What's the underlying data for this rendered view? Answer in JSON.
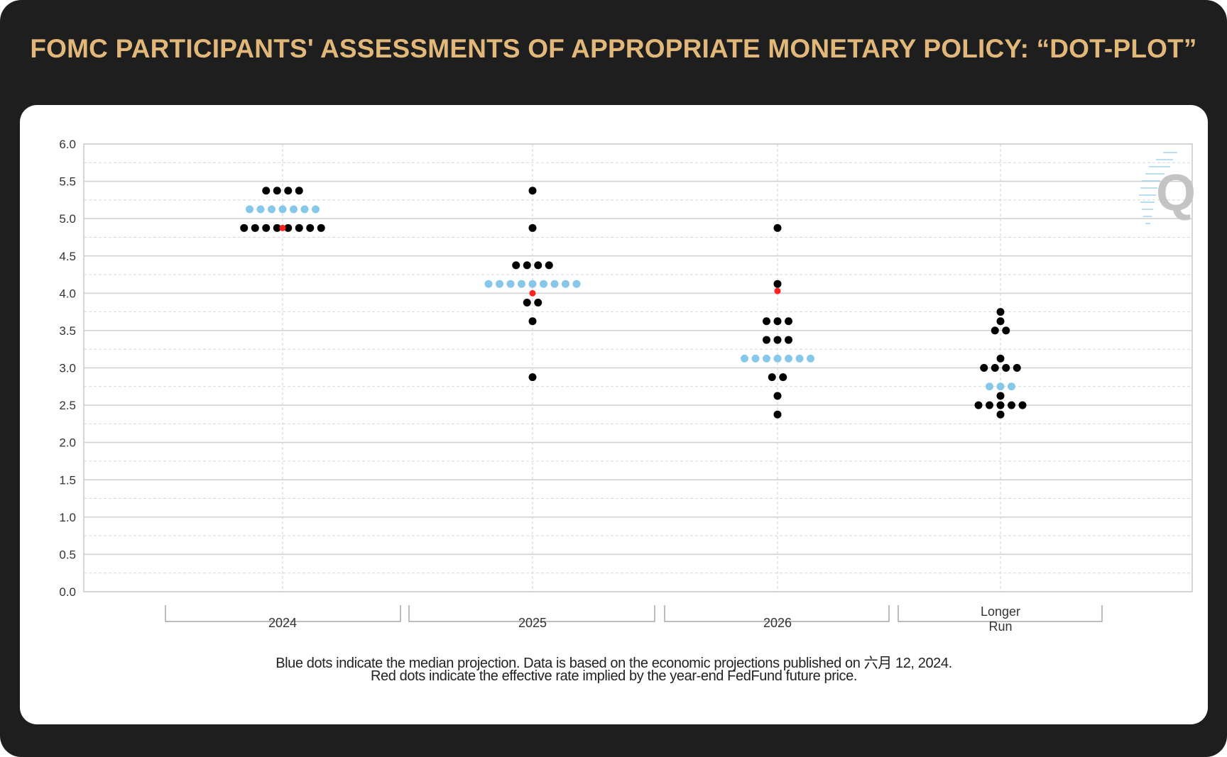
{
  "title": "FOMC PARTICIPANTS' ASSESSMENTS OF APPROPRIATE MONETARY POLICY: “DOT-PLOT”",
  "notes": [
    "Blue dots indicate the median projection. Data is based on the economic projections published on 六月 12, 2024.",
    "Red dots indicate the effective rate implied by the year-end FedFund future price."
  ],
  "colors": {
    "frame": "#1e1e1e",
    "title": "#e2b77a",
    "participant_dot": "#000000",
    "median_dot": "#87c8ea",
    "effective_rate_dot": "#ff2020",
    "watermark": "#c8c8c8"
  },
  "watermark_icon": "q-logo-icon",
  "chart_data": {
    "type": "scatter",
    "title": "",
    "xlabel": "",
    "ylabel": "",
    "ylim": [
      0,
      6
    ],
    "y_ticks": [
      "0.0",
      "0.5",
      "1.0",
      "1.5",
      "2.0",
      "2.5",
      "3.0",
      "3.5",
      "4.0",
      "4.5",
      "5.0",
      "5.5",
      "6.0"
    ],
    "categories": [
      "2024",
      "2025",
      "2026",
      "Longer Run"
    ],
    "category_labels": [
      [
        "2024"
      ],
      [
        "2025"
      ],
      [
        "2026"
      ],
      [
        "Longer",
        "Run"
      ]
    ],
    "grid": true,
    "series": [
      {
        "role": "participants",
        "points": [
          {
            "category": "2024",
            "y": 5.375,
            "count": 4
          },
          {
            "category": "2024",
            "y": 4.875,
            "count": 8
          },
          {
            "category": "2025",
            "y": 5.375,
            "count": 1
          },
          {
            "category": "2025",
            "y": 4.875,
            "count": 1
          },
          {
            "category": "2025",
            "y": 4.375,
            "count": 4
          },
          {
            "category": "2025",
            "y": 3.875,
            "count": 2
          },
          {
            "category": "2025",
            "y": 3.625,
            "count": 1
          },
          {
            "category": "2025",
            "y": 2.875,
            "count": 1
          },
          {
            "category": "2026",
            "y": 4.875,
            "count": 1
          },
          {
            "category": "2026",
            "y": 4.125,
            "count": 1
          },
          {
            "category": "2026",
            "y": 3.625,
            "count": 3
          },
          {
            "category": "2026",
            "y": 3.375,
            "count": 3
          },
          {
            "category": "2026",
            "y": 2.875,
            "count": 2
          },
          {
            "category": "2026",
            "y": 2.625,
            "count": 1
          },
          {
            "category": "2026",
            "y": 2.375,
            "count": 1
          },
          {
            "category": "Longer Run",
            "y": 3.75,
            "count": 1
          },
          {
            "category": "Longer Run",
            "y": 3.625,
            "count": 1
          },
          {
            "category": "Longer Run",
            "y": 3.5,
            "count": 2
          },
          {
            "category": "Longer Run",
            "y": 3.125,
            "count": 1
          },
          {
            "category": "Longer Run",
            "y": 3.0,
            "count": 4
          },
          {
            "category": "Longer Run",
            "y": 2.625,
            "count": 1
          },
          {
            "category": "Longer Run",
            "y": 2.5,
            "count": 5
          },
          {
            "category": "Longer Run",
            "y": 2.375,
            "count": 1
          }
        ]
      },
      {
        "role": "median",
        "points": [
          {
            "category": "2024",
            "y": 5.125,
            "count": 7
          },
          {
            "category": "2025",
            "y": 4.125,
            "count": 9
          },
          {
            "category": "2026",
            "y": 3.125,
            "count": 7
          },
          {
            "category": "Longer Run",
            "y": 2.75,
            "count": 3
          }
        ]
      },
      {
        "role": "effective_rate",
        "points": [
          {
            "category": "2024",
            "y": 4.875
          },
          {
            "category": "2025",
            "y": 4.0
          },
          {
            "category": "2026",
            "y": 4.03
          }
        ]
      }
    ]
  }
}
